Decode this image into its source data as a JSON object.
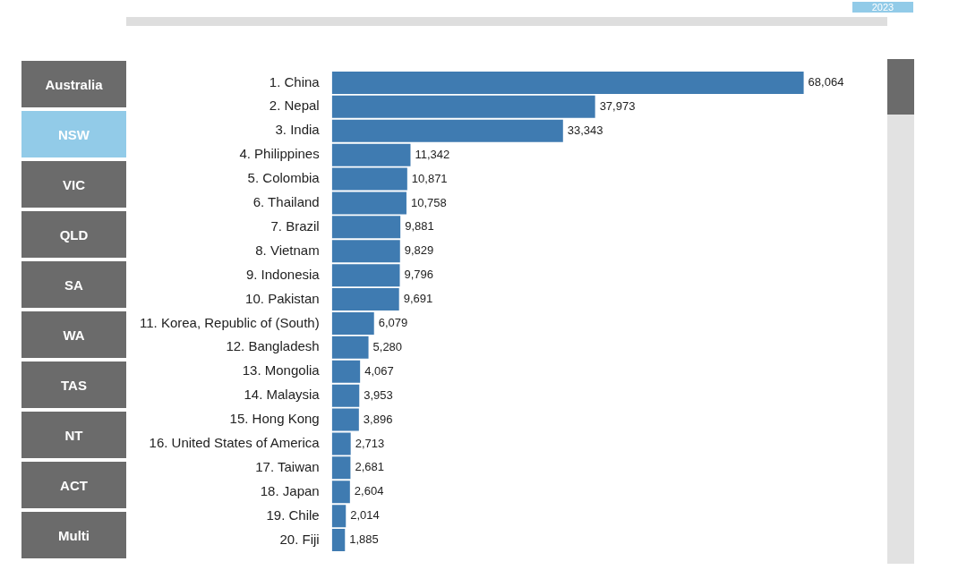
{
  "chart_data": [
    {
      "type": "other",
      "categories": [
        "Australia",
        "NSW",
        "VIC",
        "QLD",
        "SA",
        "WA",
        "TAS",
        "NT",
        "ACT",
        "Multi"
      ],
      "colors": [
        "#6b6b6b",
        "#92cbe8",
        "#6b6b6b",
        "#6b6b6b",
        "#6b6b6b",
        "#6b6b6b",
        "#6b6b6b",
        "#6b6b6b",
        "#6b6b6b",
        "#6b6b6b"
      ],
      "annotations": [
        "2023"
      ]
    },
    {
      "type": "bar",
      "orientation": "horizontal",
      "color": "#3f7bb1",
      "legend": false,
      "value_labels": [
        "68,064",
        "37,973",
        "33,343",
        "11,342",
        "10,871",
        "10,758",
        "9,881",
        "9,829",
        "9,796",
        "9,691",
        "6,079",
        "5,280",
        "4,067",
        "3,953",
        "3,896",
        "2,713",
        "2,681",
        "2,604",
        "2,014",
        "1,885"
      ],
      "categories": [
        "1. China",
        "2. Nepal",
        "3. India",
        "4. Philippines",
        "5. Colombia",
        "6. Thailand",
        "7. Brazil",
        "8. Vietnam",
        "9. Indonesia",
        "10. Pakistan",
        "11. Korea, Republic of (South)",
        "12. Bangladesh",
        "13. Mongolia",
        "14. Malaysia",
        "15. Hong Kong",
        "16. United States of America",
        "17. Taiwan",
        "18. Japan",
        "19. Chile",
        "20. Fiji"
      ],
      "values": [
        68064,
        37973,
        33343,
        11342,
        10871,
        10758,
        9881,
        9829,
        9796,
        9691,
        6079,
        5280,
        4067,
        3953,
        3896,
        2713,
        2681,
        2604,
        2014,
        1885
      ]
    }
  ]
}
